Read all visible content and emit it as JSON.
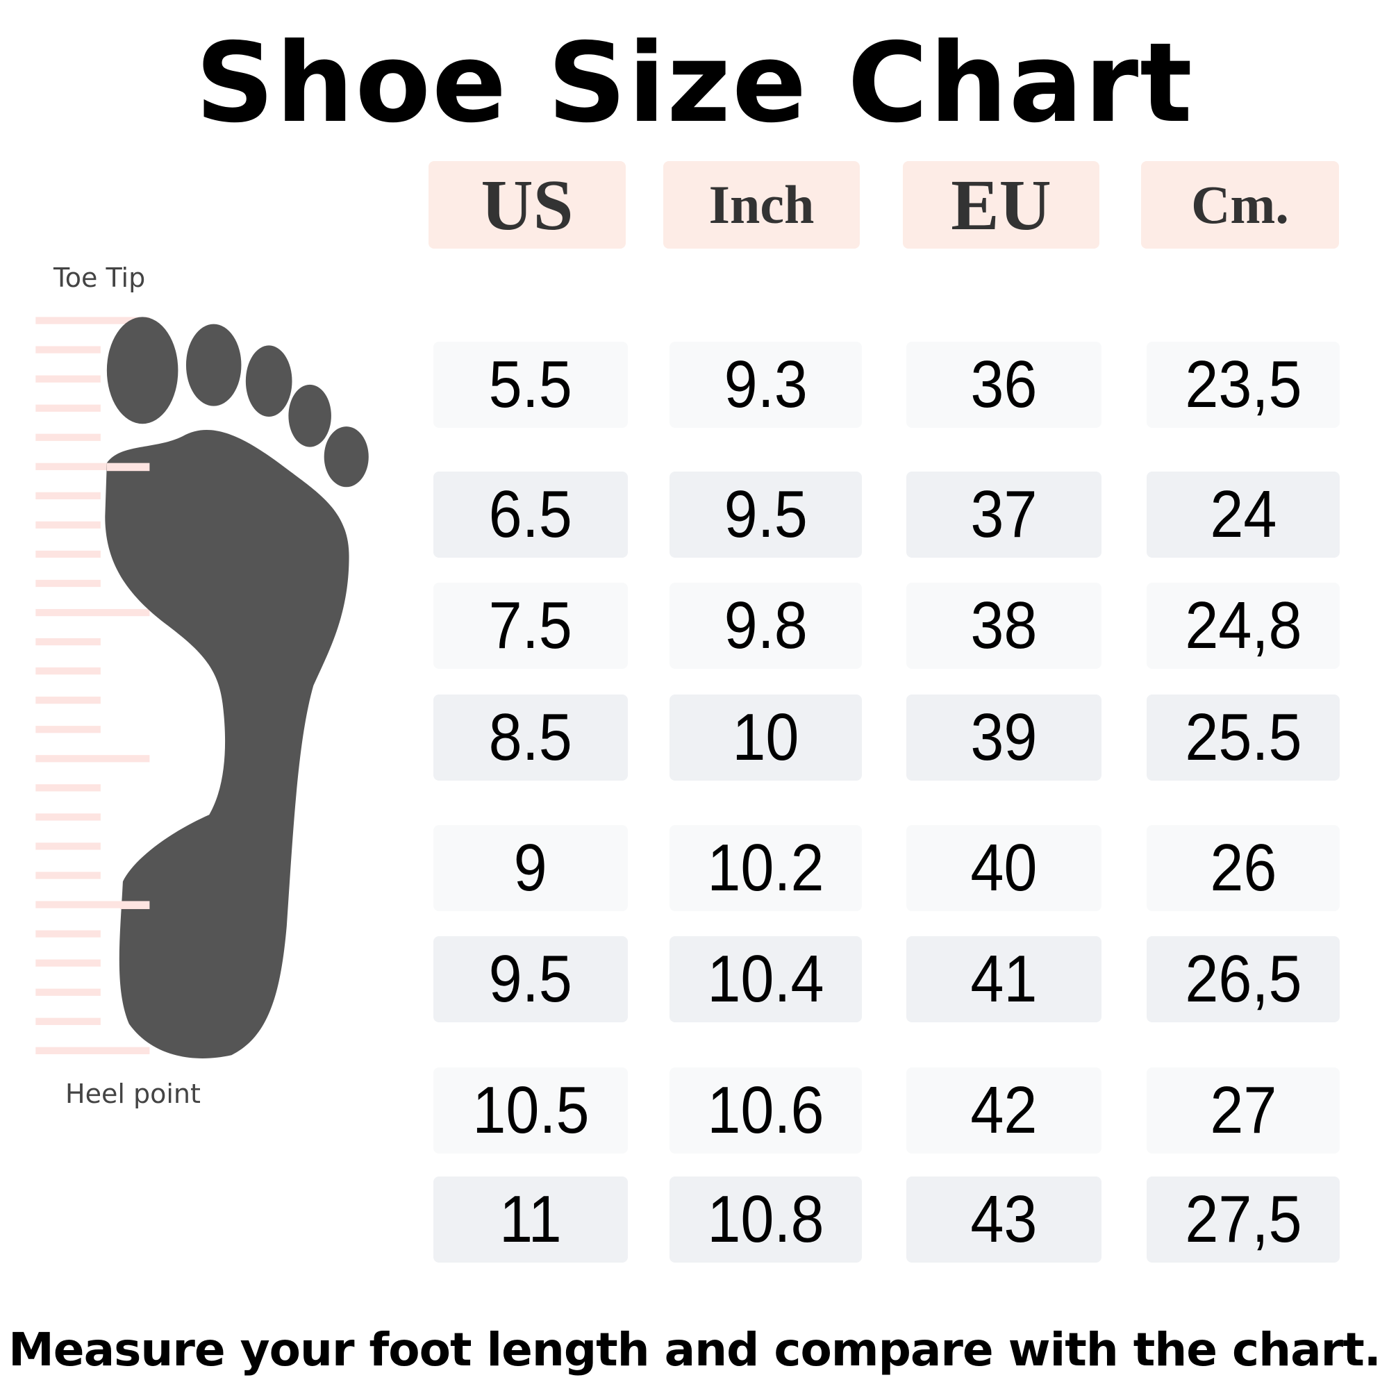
{
  "title": "Shoe Size Chart",
  "headers": [
    "US",
    "Inch",
    "EU",
    "Cm."
  ],
  "rows": [
    [
      "5.5",
      "9.3",
      "36",
      "23,5"
    ],
    [
      "6.5",
      "9.5",
      "37",
      "24"
    ],
    [
      "7.5",
      "9.8",
      "38",
      "24,8"
    ],
    [
      "8.5",
      "10",
      "39",
      "25.5"
    ],
    [
      "9",
      "10.2",
      "40",
      "26"
    ],
    [
      "9.5",
      "10.4",
      "41",
      "26,5"
    ],
    [
      "10.5",
      "10.6",
      "42",
      "27"
    ],
    [
      "11",
      "10.8",
      "43",
      "27,5"
    ]
  ],
  "foot_labels": {
    "top": "Toe Tip",
    "bottom": "Heel point"
  },
  "footer": "Measure your foot length and compare with the chart.",
  "colors": {
    "header_bg": "#fdece6",
    "row_bg_light": "#f8f9fa",
    "row_bg_dark": "#eff1f4",
    "foot": "#555555",
    "ruler": "#fde4e1"
  }
}
